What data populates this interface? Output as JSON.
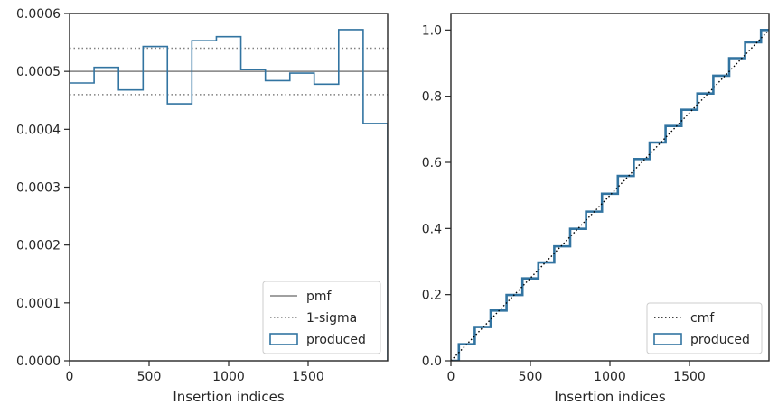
{
  "chart_data": [
    {
      "type": "histogram-step",
      "xlabel": "Insertion indices",
      "ylabel": "",
      "xlim": [
        0,
        2000
      ],
      "ylim": [
        0,
        0.0006
      ],
      "xticks": [
        0,
        500,
        1000,
        1500
      ],
      "yticks": [
        0,
        0.0001,
        0.0002,
        0.0003,
        0.0004,
        0.0005,
        0.0006
      ],
      "ytick_labels": [
        "0.0000",
        "0.0001",
        "0.0002",
        "0.0003",
        "0.0004",
        "0.0005",
        "0.0006"
      ],
      "pmf": 0.0005,
      "sigma_band": [
        0.00046,
        0.00054
      ],
      "bin_edges": [
        0,
        154,
        308,
        462,
        615,
        769,
        923,
        1077,
        1231,
        1385,
        1538,
        1692,
        1846,
        2000
      ],
      "values": [
        0.00048,
        0.000507,
        0.000468,
        0.000543,
        0.000444,
        0.000553,
        0.00056,
        0.000503,
        0.000484,
        0.000497,
        0.000478,
        0.000572,
        0.00041
      ],
      "legend": {
        "position": "lower-right",
        "entries": [
          {
            "label": "pmf",
            "style": "solid",
            "color": "#808080"
          },
          {
            "label": "1-sigma",
            "style": "dotted",
            "color": "#808080"
          },
          {
            "label": "produced",
            "style": "patch",
            "color": "#3274a1"
          }
        ]
      }
    },
    {
      "type": "line",
      "xlabel": "Insertion indices",
      "ylabel": "",
      "xlim": [
        0,
        2000
      ],
      "ylim": [
        0,
        1.05
      ],
      "xticks": [
        0,
        500,
        1000,
        1500
      ],
      "yticks": [
        0,
        0.2,
        0.4,
        0.6,
        0.8,
        1.0
      ],
      "ytick_labels": [
        "0.0",
        "0.2",
        "0.4",
        "0.6",
        "0.8",
        "1.0"
      ],
      "series": [
        {
          "name": "cmf",
          "style": "dotted",
          "color": "#000000",
          "x": [
            0,
            2000
          ],
          "y": [
            0,
            1
          ]
        },
        {
          "name": "produced",
          "style": "step",
          "color": "#3274a1",
          "x": [
            0,
            100,
            200,
            300,
            400,
            500,
            600,
            700,
            800,
            900,
            1000,
            1100,
            1200,
            1300,
            1400,
            1500,
            1600,
            1700,
            1800,
            1900,
            2000
          ],
          "y": [
            0,
            0.05,
            0.102,
            0.152,
            0.199,
            0.249,
            0.297,
            0.346,
            0.399,
            0.451,
            0.505,
            0.559,
            0.61,
            0.66,
            0.71,
            0.759,
            0.808,
            0.862,
            0.915,
            0.963,
            1.0
          ]
        }
      ],
      "legend": {
        "position": "lower-right",
        "entries": [
          {
            "label": "cmf",
            "style": "dotted",
            "color": "#000000"
          },
          {
            "label": "produced",
            "style": "patch",
            "color": "#3274a1"
          }
        ]
      }
    }
  ]
}
